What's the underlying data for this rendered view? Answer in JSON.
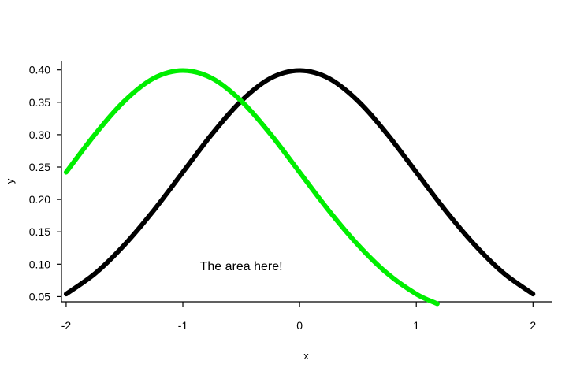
{
  "chart_data": {
    "type": "line",
    "title": "",
    "xlabel": "x",
    "ylabel": "y",
    "xlim": [
      -2.04,
      2.16
    ],
    "ylim": [
      0.042,
      0.413
    ],
    "x_ticks": [
      -2,
      -1,
      0,
      1,
      2
    ],
    "x_tick_labels": [
      "-2",
      "-1",
      "0",
      "1",
      "2"
    ],
    "y_ticks": [
      0.05,
      0.1,
      0.15,
      0.2,
      0.25,
      0.3,
      0.35,
      0.4
    ],
    "y_tick_labels": [
      "0.05",
      "0.10",
      "0.15",
      "0.20",
      "0.25",
      "0.30",
      "0.35",
      "0.40"
    ],
    "grid": false,
    "series": [
      {
        "color": "#000000",
        "x": [
          -2.0,
          -1.75,
          -1.5,
          -1.25,
          -1.0,
          -0.75,
          -0.5,
          -0.25,
          0.0,
          0.25,
          0.5,
          0.75,
          1.0,
          1.25,
          1.5,
          1.75,
          2.0
        ],
        "y": [
          0.054,
          0.086,
          0.13,
          0.183,
          0.242,
          0.301,
          0.352,
          0.387,
          0.399,
          0.387,
          0.352,
          0.301,
          0.242,
          0.183,
          0.13,
          0.086,
          0.054
        ]
      },
      {
        "color": "#00ee00",
        "x": [
          -2.0,
          -1.75,
          -1.5,
          -1.25,
          -1.0,
          -0.75,
          -0.5,
          -0.25,
          0.0,
          0.25,
          0.5,
          0.75,
          1.0,
          1.18
        ],
        "y": [
          0.242,
          0.301,
          0.352,
          0.387,
          0.399,
          0.387,
          0.352,
          0.301,
          0.242,
          0.183,
          0.13,
          0.086,
          0.054,
          0.039
        ]
      }
    ],
    "annotations": [
      {
        "text": "The area here!",
        "x": -0.5,
        "y": 0.098
      }
    ]
  }
}
